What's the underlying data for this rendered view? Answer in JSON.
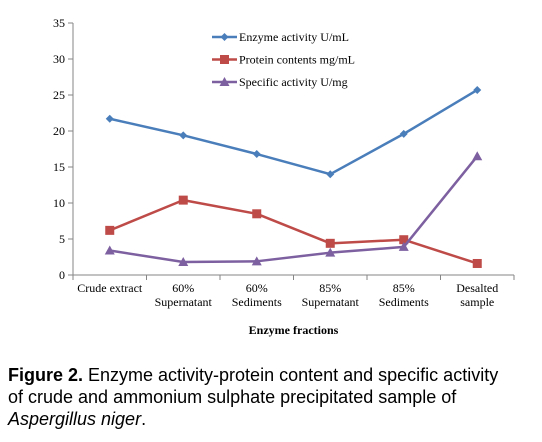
{
  "chart_data": {
    "type": "line",
    "categories": [
      [
        "Crude extract"
      ],
      [
        "60%",
        "Supernatant"
      ],
      [
        "60%",
        "Sediments"
      ],
      [
        "85%",
        "Supernatant"
      ],
      [
        "85%",
        "Sediments"
      ],
      [
        "Desalted",
        "sample"
      ]
    ],
    "series": [
      {
        "name": "Enzyme activity U/mL",
        "values": [
          21.7,
          19.4,
          16.8,
          14.0,
          19.6,
          25.7
        ],
        "color": "#4A7EBB",
        "marker": "diamond"
      },
      {
        "name": "Protein contents mg/mL",
        "values": [
          6.2,
          10.4,
          8.5,
          4.4,
          4.9,
          1.6
        ],
        "color": "#BE4B48",
        "marker": "square"
      },
      {
        "name": "Specific activity U/mg",
        "values": [
          3.4,
          1.8,
          1.9,
          3.1,
          3.9,
          16.5
        ],
        "color": "#7D60A0",
        "marker": "triangle"
      }
    ],
    "xlabel": "Enzyme fractions",
    "ylabel": "",
    "ylim": [
      0,
      35
    ],
    "yticks": [
      0,
      5,
      10,
      15,
      20,
      25,
      30,
      35
    ],
    "grid": false,
    "legend_position": "top-center"
  },
  "caption": {
    "label": "Figure 2.",
    "text": " Enzyme activity-protein content and specific activity of crude and ammonium sulphate precipitated sample of ",
    "species": "Aspergillus niger",
    "end": "."
  }
}
